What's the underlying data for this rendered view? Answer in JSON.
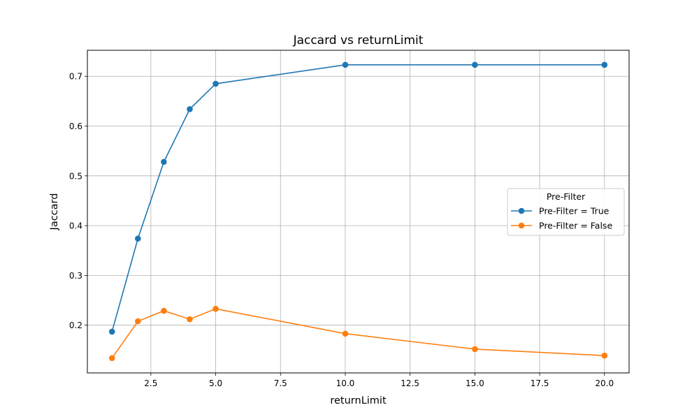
{
  "chart_data": {
    "type": "line",
    "title": "Jaccard vs returnLimit",
    "xlabel": "returnLimit",
    "ylabel": "Jaccard",
    "x": [
      1,
      2,
      3,
      4,
      5,
      10,
      15,
      20
    ],
    "xlim": [
      0.05,
      20.95
    ],
    "ylim": [
      0.1042,
      0.7522
    ],
    "xticks": [
      2.5,
      5.0,
      7.5,
      10.0,
      12.5,
      15.0,
      17.5,
      20.0
    ],
    "xtick_labels": [
      "2.5",
      "5.0",
      "7.5",
      "10.0",
      "12.5",
      "15.0",
      "17.5",
      "20.0"
    ],
    "yticks": [
      0.2,
      0.3,
      0.4,
      0.5,
      0.6,
      0.7
    ],
    "ytick_labels": [
      "0.2",
      "0.3",
      "0.4",
      "0.5",
      "0.6",
      "0.7"
    ],
    "grid": true,
    "legend": {
      "title": "Pre-Filter",
      "placement": "center-right"
    },
    "series": [
      {
        "name": "Pre-Filter = True",
        "color": "#1f77b4",
        "values": [
          0.187,
          0.374,
          0.528,
          0.634,
          0.685,
          0.723,
          0.723,
          0.723
        ]
      },
      {
        "name": "Pre-Filter = False",
        "color": "#ff7f0e",
        "values": [
          0.134,
          0.208,
          0.229,
          0.212,
          0.233,
          0.183,
          0.152,
          0.139
        ]
      }
    ]
  }
}
